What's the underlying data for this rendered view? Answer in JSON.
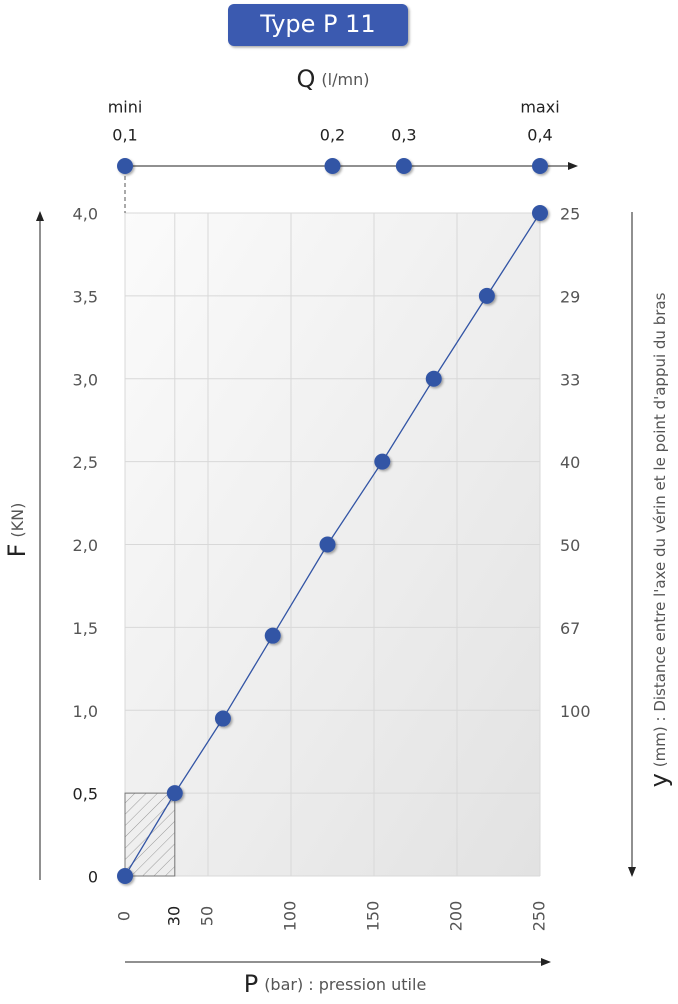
{
  "chart_data": {
    "type": "line",
    "title": "Type P 11",
    "x_label": {
      "symbol": "P",
      "unit": "(bar) : pression utile"
    },
    "y_label": {
      "symbol": "F",
      "unit": "(KN)"
    },
    "y2_label": {
      "symbol": "y",
      "unit": "(mm) : Distance entre l'axe du vérin et le point d'appui du bras"
    },
    "xlim": [
      0,
      250
    ],
    "xticks": [
      0,
      30,
      50,
      100,
      150,
      200,
      250
    ],
    "ylim": [
      0,
      4
    ],
    "yticks": [
      0,
      {
        "value": 0.5,
        "label": "0,5"
      },
      {
        "value": 1,
        "label": "1,0"
      },
      {
        "value": 1.5,
        "label": "1,5"
      },
      {
        "value": 2,
        "label": "2,0"
      },
      {
        "value": 2.5,
        "label": "2,5"
      },
      {
        "value": 3,
        "label": "3,0"
      },
      {
        "value": 3.5,
        "label": "3,5"
      },
      {
        "value": 4,
        "label": "4,0"
      }
    ],
    "grid": true,
    "series": [
      {
        "color": "#3355a5",
        "x": [
          0,
          30,
          59,
          89,
          122,
          155,
          186,
          218,
          250
        ],
        "values": [
          0,
          0.5,
          0.95,
          1.45,
          2,
          2.5,
          3,
          3.5,
          4
        ]
      }
    ],
    "y2_values": {
      "values": [
        25,
        29,
        33,
        40,
        50,
        67,
        100
      ],
      "at_y": [
        4,
        3.5,
        3,
        2.5,
        2,
        1.5,
        1
      ]
    },
    "top_axis": {
      "symbol": "Q",
      "unit": "(l/mn)",
      "ticks": [
        {
          "value": 0.1,
          "label": "0,1"
        },
        {
          "value": 0.2,
          "label": "0,2"
        },
        {
          "value": 0.3,
          "label": "0,3"
        },
        {
          "value": 0.4,
          "label": "0,4"
        }
      ],
      "at_x": [
        0,
        125,
        168,
        250
      ],
      "min_label": "mini",
      "max_label": "maxi"
    },
    "min_zone": {
      "x": [
        0,
        30
      ],
      "y": [
        0,
        0.5
      ]
    }
  }
}
